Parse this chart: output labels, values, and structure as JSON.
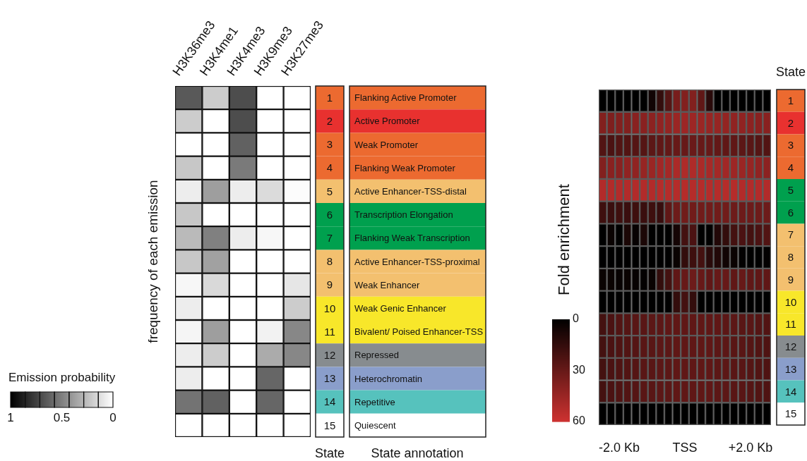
{
  "chart_data": [
    {
      "type": "heatmap",
      "ylabel": "frequency of each emission",
      "clabel": "Emission probability",
      "clim": [
        0,
        1
      ],
      "cticks": [
        1,
        0.5,
        0
      ],
      "categories": [
        "H3K36me3",
        "H3K4me1",
        "H3K4me3",
        "H3K9me3",
        "H3K27me3"
      ],
      "y_categories": [
        "1",
        "2",
        "3",
        "4",
        "5",
        "6",
        "7",
        "8",
        "9",
        "10",
        "11",
        "12",
        "13",
        "14",
        "15"
      ],
      "y2_categories": [
        "Flanking Active Promoter",
        "Active Promoter",
        "Weak Promoter",
        "Flanking Weak Promoter",
        "Active Enhancer-TSS-distal",
        "Transcription Elongation",
        "Flanking Weak Transcription",
        "Active Enhancer-TSS-proximal",
        "Weak Enhancer",
        "Weak Genic Enhancer",
        "Bivalent/ Poised Enhancer-TSS",
        "Repressed",
        "Heterochromatin",
        "Repetitive",
        "Quiescent"
      ],
      "colors": [
        "#ec6a30",
        "#e8312f",
        "#ec6a30",
        "#ec6a30",
        "#f3c06f",
        "#00a04e",
        "#00a04e",
        "#f3c06f",
        "#f3c06f",
        "#f8e72a",
        "#f8e72a",
        "#878c8f",
        "#8a9ecb",
        "#56c2bd",
        "#ffffff"
      ],
      "cells": [
        [
          0.65,
          0.2,
          0.7,
          0,
          0
        ],
        [
          0.2,
          0,
          0.7,
          0,
          0
        ],
        [
          0,
          0,
          0.62,
          0,
          0
        ],
        [
          0.22,
          0,
          0.52,
          0,
          0
        ],
        [
          0.07,
          0.38,
          0.07,
          0.14,
          0.01
        ],
        [
          0.22,
          0,
          0,
          0,
          0
        ],
        [
          0.27,
          0.5,
          0.07,
          0.03,
          0
        ],
        [
          0.22,
          0.37,
          0,
          0,
          0
        ],
        [
          0.03,
          0.15,
          0,
          0,
          0.1
        ],
        [
          0.07,
          0,
          0,
          0,
          0.2
        ],
        [
          0.04,
          0.38,
          0,
          0.05,
          0.47
        ],
        [
          0.07,
          0.2,
          0,
          0.33,
          0.47
        ],
        [
          0.07,
          0,
          0,
          0.6,
          0
        ],
        [
          0.55,
          0.62,
          0,
          0.6,
          0
        ],
        [
          0,
          0,
          0,
          0,
          0
        ]
      ],
      "annotations": [
        "State",
        "State annotation"
      ]
    },
    {
      "type": "heatmap",
      "clabel": "Fold enrichment",
      "clim": [
        0,
        60
      ],
      "cticks": [
        0,
        30,
        60
      ],
      "y2label": "State",
      "categories": [
        null,
        null,
        "-2.0 Kb",
        null,
        null,
        null,
        null,
        null,
        null,
        null,
        "TSS",
        null,
        null,
        null,
        null,
        null,
        null,
        null,
        "+2.0 Kb",
        null,
        null
      ],
      "y_categories": [
        "1",
        "2",
        "3",
        "4",
        "5",
        "6",
        "7",
        "8",
        "9",
        "10",
        "11",
        "12",
        "13",
        "14",
        "15"
      ],
      "colors": [
        "#ec6a30",
        "#e8312f",
        "#ec6a30",
        "#ec6a30",
        "#00a04e",
        "#00a04e",
        "#f3c06f",
        "#f3c06f",
        "#f3c06f",
        "#f8e72a",
        "#f8e72a",
        "#878c8f",
        "#8a9ecb",
        "#56c2bd",
        "#ffffff"
      ],
      "cells": [
        [
          0,
          0,
          0,
          0,
          0,
          0,
          5,
          15,
          25,
          35,
          38,
          38,
          28,
          12,
          0,
          0,
          0,
          0,
          0,
          0,
          0
        ],
        [
          38,
          37,
          38,
          38,
          40,
          40,
          41,
          42,
          43,
          45,
          46,
          46,
          45,
          44,
          44,
          43,
          42,
          42,
          41,
          40,
          40
        ],
        [
          24,
          22,
          24,
          24,
          25,
          25,
          27,
          28,
          29,
          30,
          30,
          31,
          30,
          30,
          29,
          28,
          28,
          27,
          26,
          25,
          24
        ],
        [
          38,
          40,
          40,
          42,
          42,
          44,
          45,
          47,
          48,
          50,
          51,
          51,
          50,
          49,
          48,
          47,
          46,
          45,
          44,
          42,
          41
        ],
        [
          52,
          52,
          52,
          52,
          52,
          52,
          52,
          53,
          53,
          53,
          53,
          53,
          53,
          53,
          53,
          53,
          53,
          52,
          52,
          52,
          52
        ],
        [
          18,
          17,
          18,
          17,
          18,
          17,
          18,
          16,
          28,
          32,
          33,
          33,
          33,
          33,
          33,
          33,
          32,
          32,
          32,
          32,
          32
        ],
        [
          0,
          3,
          0,
          8,
          2,
          8,
          0,
          0,
          0,
          6,
          20,
          22,
          0,
          0,
          10,
          15,
          20,
          22,
          20,
          22,
          24
        ],
        [
          0,
          0,
          0,
          0,
          0,
          0,
          0,
          0,
          0,
          3,
          15,
          18,
          20,
          12,
          10,
          5,
          3,
          1,
          0,
          0,
          1
        ],
        [
          3,
          3,
          2,
          3,
          2,
          1,
          3,
          15,
          20,
          28,
          30,
          32,
          30,
          28,
          30,
          30,
          28,
          30,
          28,
          28,
          28
        ],
        [
          0,
          0,
          0,
          0,
          0,
          0,
          0,
          0,
          0,
          15,
          20,
          15,
          0,
          0,
          0,
          0,
          0,
          0,
          0,
          0,
          0
        ],
        [
          20,
          22,
          24,
          25,
          26,
          26,
          27,
          27,
          28,
          28,
          28,
          28,
          28,
          28,
          28,
          27,
          27,
          26,
          26,
          25,
          24
        ],
        [
          20,
          22,
          23,
          24,
          25,
          26,
          26,
          27,
          27,
          28,
          28,
          28,
          28,
          28,
          27,
          27,
          26,
          26,
          25,
          24,
          23
        ],
        [
          20,
          22,
          23,
          24,
          25,
          26,
          26,
          27,
          27,
          28,
          28,
          28,
          28,
          28,
          27,
          27,
          26,
          26,
          25,
          24,
          23
        ],
        [
          20,
          22,
          23,
          24,
          25,
          26,
          26,
          27,
          27,
          28,
          28,
          28,
          28,
          28,
          27,
          27,
          26,
          26,
          25,
          24,
          23
        ],
        [
          0,
          0,
          0,
          0,
          0,
          0,
          0,
          0,
          0,
          0,
          0,
          0,
          0,
          0,
          0,
          0,
          0,
          0,
          0,
          0,
          0
        ]
      ]
    }
  ]
}
